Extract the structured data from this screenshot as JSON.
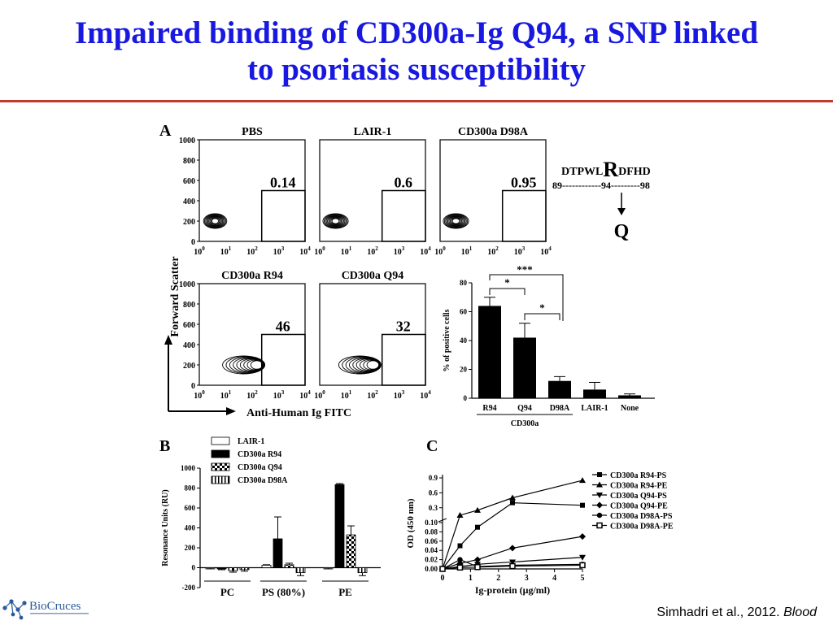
{
  "slide": {
    "title_line1": "Impaired binding of CD300a-Ig Q94, a SNP linked",
    "title_line2": "to psoriasis susceptibility",
    "citation_authors": "Simhadri et al., 2012.",
    "citation_journal": "Blood",
    "logo_text": "BioCruces"
  },
  "panelA": {
    "letter": "A",
    "y_axis_label": "Forward Scatter",
    "x_axis_label": "Anti-Human Ig FITC",
    "y_ticks": [
      "1000",
      "800",
      "600",
      "400",
      "200",
      "0"
    ],
    "x_ticks": [
      "10",
      "10",
      "10",
      "10",
      "10"
    ],
    "x_exponents": [
      "0",
      "1",
      "2",
      "3",
      "4"
    ],
    "plots": [
      {
        "label": "PBS",
        "gate_value": "0.14"
      },
      {
        "label": "LAIR-1",
        "gate_value": "0.6"
      },
      {
        "label": "CD300a D98A",
        "gate_value": "0.95"
      },
      {
        "label": "CD300a R94",
        "gate_value": "46"
      },
      {
        "label": "CD300a Q94",
        "gate_value": "32"
      }
    ],
    "sequence": {
      "left": "DTPWL",
      "big": "R",
      "right": "DFHD",
      "start": "89",
      "mid": "94",
      "end": "98",
      "dashes1": "------------",
      "dashes2": "---------",
      "mutation": "Q"
    }
  },
  "chart_data": [
    {
      "type": "bar",
      "panel": "A",
      "categories": [
        "R94",
        "Q94",
        "D98A",
        "LAIR-1",
        "None"
      ],
      "group_label": "CD300a",
      "values": [
        64,
        42,
        12,
        6,
        2
      ],
      "errors": [
        6,
        10,
        3,
        5,
        1
      ],
      "ylabel": "% of positive cells",
      "ylim": [
        0,
        80
      ],
      "yticks": [
        "0",
        "20",
        "40",
        "60",
        "80"
      ],
      "significance": [
        "*",
        "*",
        "***"
      ]
    },
    {
      "type": "bar",
      "panel": "B",
      "letter": "B",
      "categories": [
        "PC",
        "PS (80%)",
        "PE"
      ],
      "series": [
        {
          "name": "LAIR-1",
          "values": [
            -5,
            25,
            -5
          ],
          "errors": [
            5,
            5,
            5
          ]
        },
        {
          "name": "CD300a R94",
          "values": [
            -10,
            290,
            835
          ],
          "errors": [
            10,
            220,
            10
          ]
        },
        {
          "name": "CD300a Q94",
          "values": [
            -30,
            30,
            330
          ],
          "errors": [
            15,
            15,
            90
          ]
        },
        {
          "name": "CD300a D98A",
          "values": [
            -20,
            -50,
            -50
          ],
          "errors": [
            15,
            30,
            30
          ]
        }
      ],
      "ylabel": "Resonance Units (RU)",
      "ylim": [
        -200,
        1000
      ],
      "yticks": [
        "-200",
        "0",
        "200",
        "400",
        "600",
        "800",
        "1000"
      ]
    },
    {
      "type": "line",
      "panel": "C",
      "letter": "C",
      "x": [
        0,
        0.625,
        1.25,
        2.5,
        5
      ],
      "xlabel": "Ig-protein (μg/ml)",
      "ylabel": "OD (450 nm)",
      "xticks": [
        "0",
        "1",
        "2",
        "3",
        "4",
        "5"
      ],
      "yticks_lower": [
        "0.00",
        "0.02",
        "0.04",
        "0.06",
        "0.08",
        "0.10"
      ],
      "yticks_upper": [
        "0.3",
        "0.6",
        "0.9"
      ],
      "series": [
        {
          "name": "CD300a R94-PS",
          "values": [
            0,
            0.05,
            0.09,
            0.4,
            0.35
          ]
        },
        {
          "name": "CD300a R94-PE",
          "values": [
            0,
            0.15,
            0.25,
            0.5,
            0.85
          ]
        },
        {
          "name": "CD300a Q94-PS",
          "values": [
            0,
            0.005,
            0.01,
            0.015,
            0.025
          ]
        },
        {
          "name": "CD300a Q94-PE",
          "values": [
            0,
            0.012,
            0.02,
            0.045,
            0.07
          ]
        },
        {
          "name": "CD300a D98A-PS",
          "values": [
            0,
            0.02,
            0.005,
            0.008,
            0.01
          ]
        },
        {
          "name": "CD300a D98A-PE",
          "values": [
            0,
            0.003,
            0.004,
            0.006,
            0.008
          ]
        }
      ]
    }
  ]
}
